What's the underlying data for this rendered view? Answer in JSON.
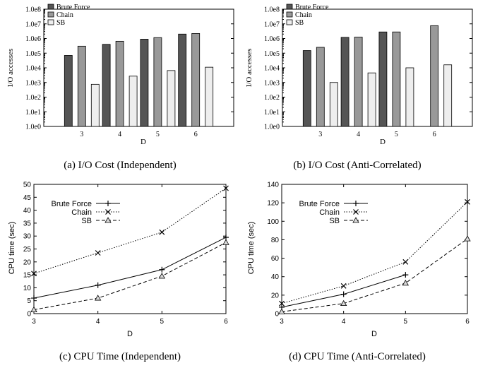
{
  "chart_data": [
    {
      "id": "a",
      "type": "bar",
      "caption": "(a) I/O Cost (Independent)",
      "xlabel": "D",
      "ylabel": "I/O accesses",
      "yscale": "log",
      "ylim": [
        1,
        100000000
      ],
      "yticks": [
        "1.0e0",
        "1.0e1",
        "1.0e2",
        "1.0e3",
        "1.0e4",
        "1.0e5",
        "1.0e6",
        "1.0e7",
        "1.0e8"
      ],
      "categories": [
        "3",
        "4",
        "5",
        "6"
      ],
      "legend_position": "top-left",
      "series": [
        {
          "name": "Brute Force",
          "color": "#555555",
          "values": [
            70000,
            400000,
            900000,
            2000000
          ]
        },
        {
          "name": "Chain",
          "color": "#999999",
          "values": [
            300000,
            650000,
            1150000,
            2200000
          ]
        },
        {
          "name": "SB",
          "color": "#eeeeee",
          "values": [
            750,
            2700,
            6500,
            11000
          ]
        }
      ]
    },
    {
      "id": "b",
      "type": "bar",
      "caption": "(b) I/O Cost (Anti-Correlated)",
      "xlabel": "D",
      "ylabel": "I/O accesses",
      "yscale": "log",
      "ylim": [
        1,
        100000000
      ],
      "yticks": [
        "1.0e0",
        "1.0e1",
        "1.0e2",
        "1.0e3",
        "1.0e4",
        "1.0e5",
        "1.0e6",
        "1.0e7",
        "1.0e8"
      ],
      "categories": [
        "3",
        "4",
        "5",
        "6"
      ],
      "legend_position": "top-left",
      "series": [
        {
          "name": "Brute Force",
          "color": "#555555",
          "values": [
            150000,
            1200000,
            2800000,
            null
          ]
        },
        {
          "name": "Chain",
          "color": "#999999",
          "values": [
            250000,
            1250000,
            2800000,
            7500000
          ]
        },
        {
          "name": "SB",
          "color": "#eeeeee",
          "values": [
            1000,
            4500,
            10000,
            16000
          ]
        }
      ]
    },
    {
      "id": "c",
      "type": "line",
      "caption": "(c) CPU Time (Independent)",
      "xlabel": "D",
      "ylabel": "CPU time (sec)",
      "x": [
        3,
        4,
        5,
        6
      ],
      "xlim": [
        3,
        6
      ],
      "ylim": [
        0,
        50
      ],
      "yticks": [
        0,
        5,
        10,
        15,
        20,
        25,
        30,
        35,
        40,
        45,
        50
      ],
      "legend_position": "top-left",
      "series": [
        {
          "name": "Brute Force",
          "marker": "plus",
          "dash": "",
          "values": [
            6,
            11,
            17,
            29.5
          ]
        },
        {
          "name": "Chain",
          "marker": "x",
          "dash": "1.5,2",
          "values": [
            15.5,
            23.5,
            31.5,
            48.5
          ]
        },
        {
          "name": "SB",
          "marker": "triangle",
          "dash": "5,3",
          "values": [
            1.5,
            6,
            14.5,
            27.5
          ]
        }
      ]
    },
    {
      "id": "d",
      "type": "line",
      "caption": "(d) CPU Time (Anti-Correlated)",
      "xlabel": "D",
      "ylabel": "CPU time (sec)",
      "x": [
        3,
        4,
        5,
        6
      ],
      "xlim": [
        3,
        6
      ],
      "ylim": [
        0,
        140
      ],
      "yticks": [
        0,
        20,
        40,
        60,
        80,
        100,
        120,
        140
      ],
      "legend_position": "top-left",
      "series": [
        {
          "name": "Brute Force",
          "marker": "plus",
          "dash": "",
          "values": [
            7,
            21,
            42,
            null
          ]
        },
        {
          "name": "Chain",
          "marker": "x",
          "dash": "1.5,2",
          "values": [
            11,
            30,
            56,
            121
          ]
        },
        {
          "name": "SB",
          "marker": "triangle",
          "dash": "5,3",
          "values": [
            2,
            11,
            33,
            81
          ]
        }
      ]
    }
  ]
}
